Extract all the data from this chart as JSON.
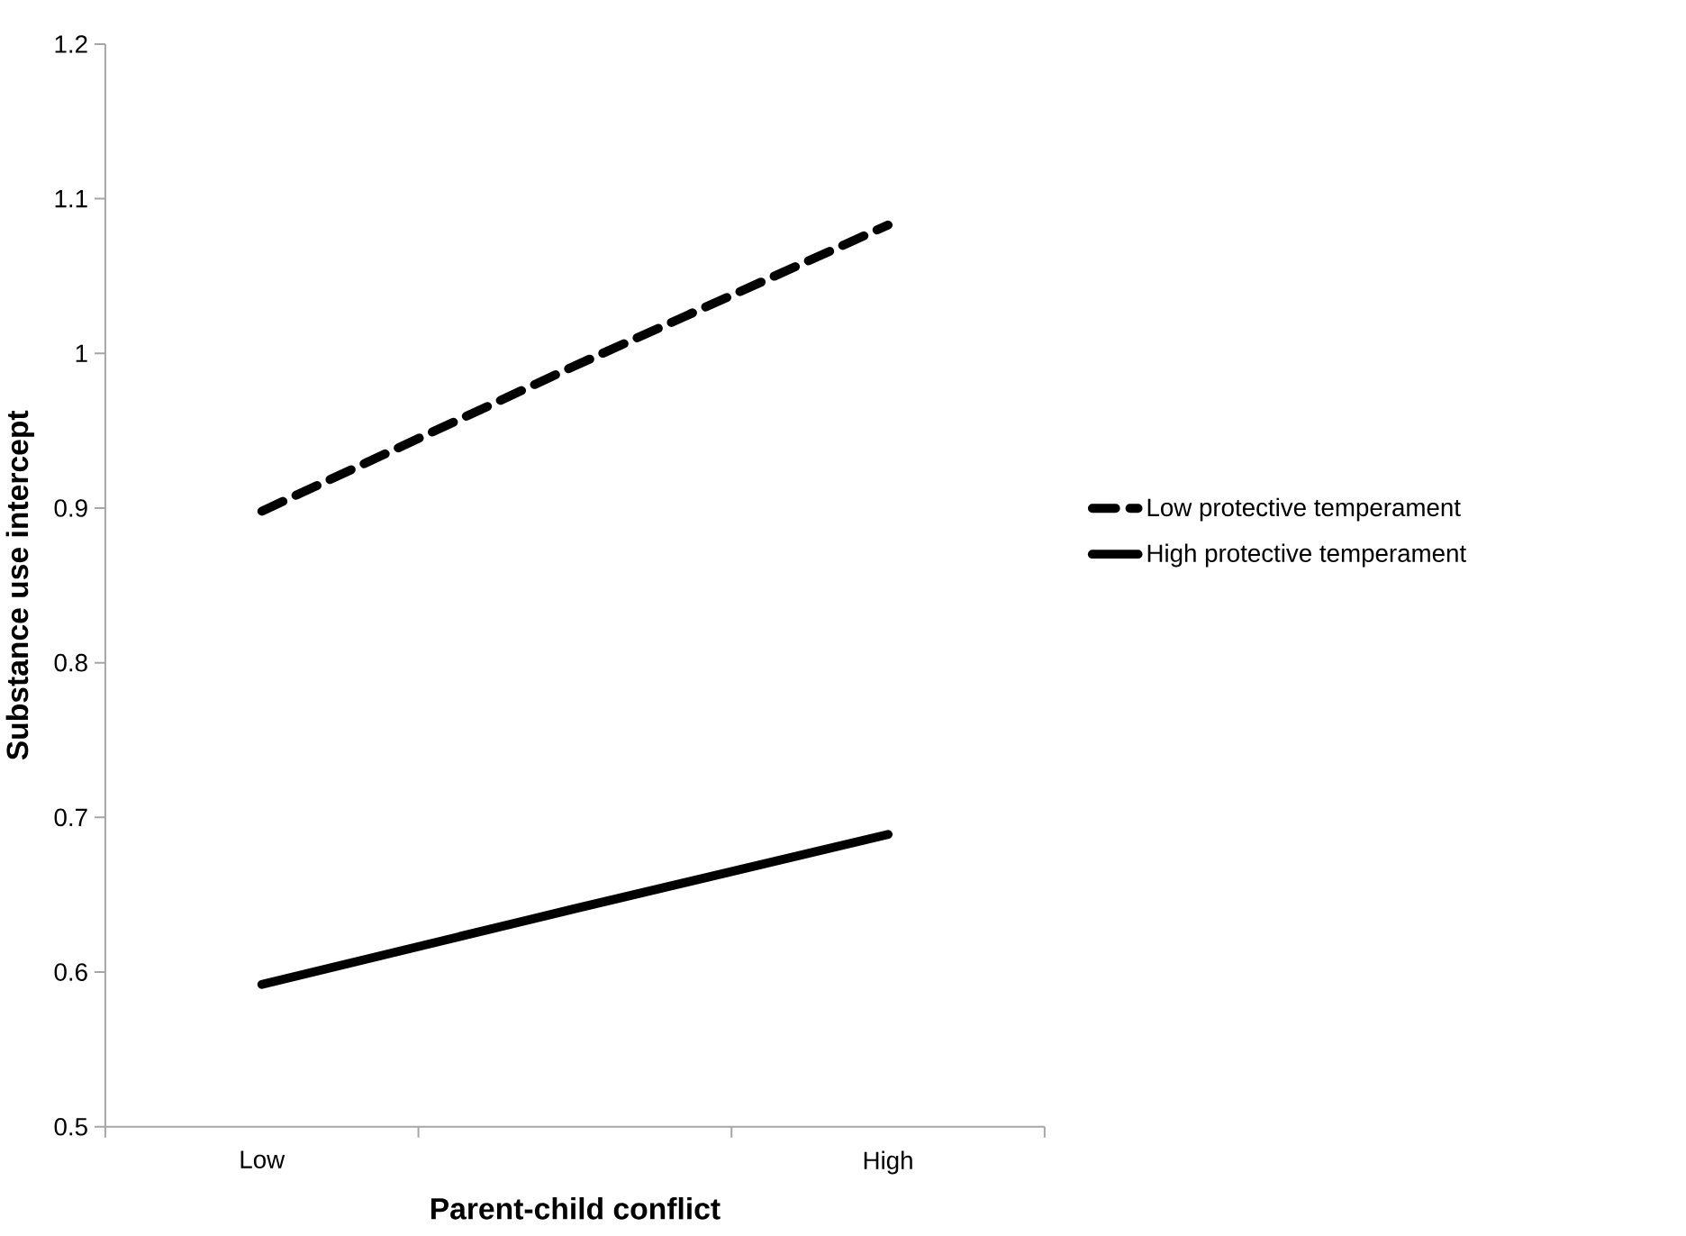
{
  "chart_data": {
    "type": "line",
    "xlabel": "Parent-child conflict",
    "ylabel": "Substance use intercept",
    "categories": [
      "Low",
      null,
      "High"
    ],
    "series": [
      {
        "name": "Low protective temperament",
        "color": "#000000",
        "line_style": "dashed",
        "values": [
          0.898,
          0.992,
          1.083
        ]
      },
      {
        "name": "High protective temperament",
        "color": "#000000",
        "line_style": "solid",
        "values": [
          0.592,
          0.641,
          0.689
        ]
      }
    ],
    "ylim": [
      0.5,
      1.2
    ],
    "yticks": [
      0.5,
      0.6,
      0.7,
      0.8,
      0.9,
      1,
      1.1,
      1.2
    ],
    "grid": false,
    "legend": "right",
    "marker": "none"
  }
}
